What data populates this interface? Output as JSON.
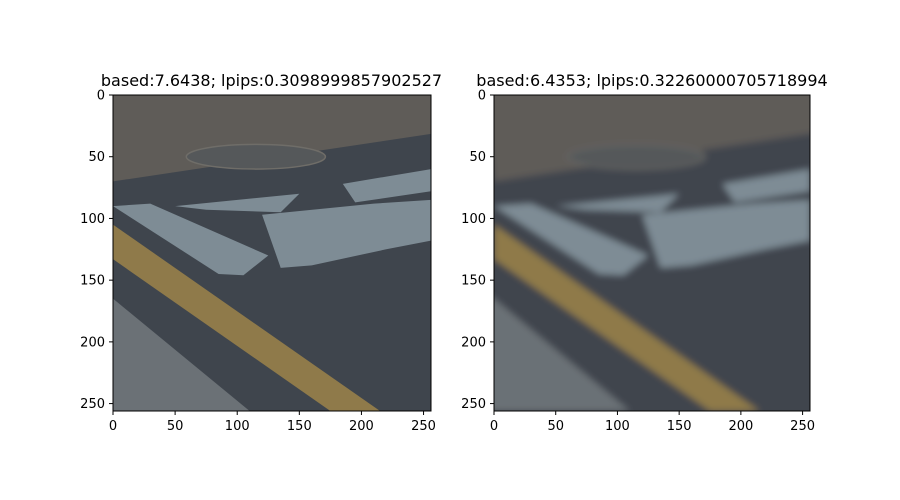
{
  "panels": [
    {
      "title": "based:7.6438; lpips:0.3098999857902527",
      "blurred": false
    },
    {
      "title": "based:6.4353; lpips:0.32260000705718994",
      "blurred": true
    }
  ],
  "axes": {
    "x_ticks": [
      0,
      50,
      100,
      150,
      200,
      250
    ],
    "y_ticks": [
      0,
      50,
      100,
      150,
      200,
      250
    ],
    "range": [
      0,
      256
    ]
  },
  "colors": {
    "asphalt": "#3f454d",
    "road_top": "#5f5c58",
    "paint_white": "#7e8c95",
    "paint_yellow": "#8f7a4a",
    "curb": "#6b7176",
    "manhole": "#55585a"
  }
}
